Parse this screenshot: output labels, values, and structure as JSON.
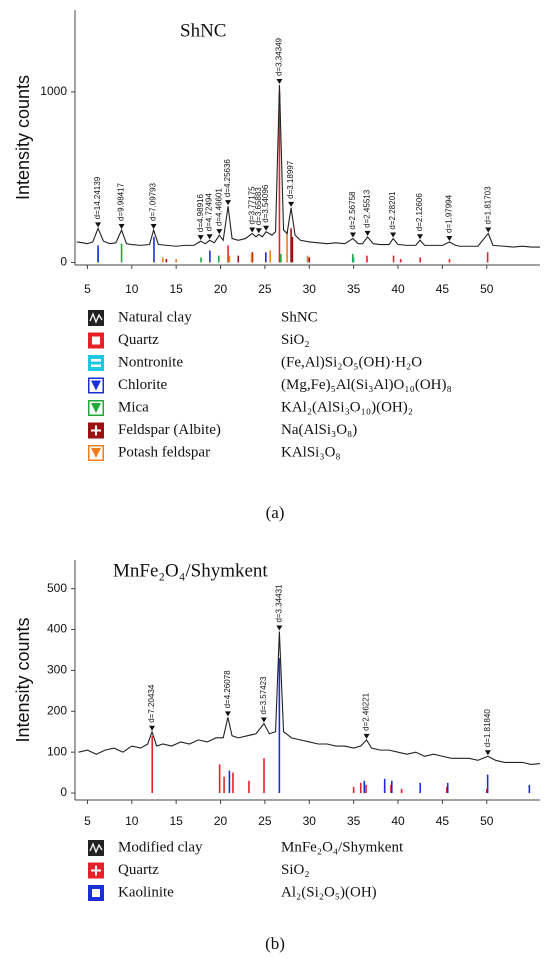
{
  "chart_data": [
    {
      "type": "line",
      "title": "ShNC",
      "ylabel": "Intensity counts",
      "panel_label": "(a)",
      "xlim": [
        3.6,
        56
      ],
      "ylim": [
        -15,
        1480
      ],
      "xticks": [
        5,
        10,
        15,
        20,
        25,
        30,
        35,
        40,
        45,
        50
      ],
      "yticks": [
        0,
        1000
      ],
      "series": [
        {
          "name": "Natural clay",
          "formula": "ShNC",
          "type": "line",
          "color": "#222222",
          "marker": "wave",
          "x": [
            3.8,
            4.5,
            5,
            5.6,
            6.2,
            6.8,
            7.5,
            8.2,
            8.85,
            9.4,
            10,
            11,
            12,
            12.46,
            13,
            14,
            15,
            16,
            17,
            17.76,
            18.3,
            18.77,
            19.3,
            19.86,
            20.3,
            20.85,
            21.3,
            22,
            22.8,
            23.57,
            24,
            24.31,
            24.7,
            25.13,
            25.8,
            26.2,
            26.64,
            27.1,
            27.5,
            27.95,
            28.4,
            29,
            30,
            31,
            32,
            33,
            34,
            34.92,
            35.5,
            36,
            36.57,
            37.2,
            38,
            39,
            39.45,
            40,
            41,
            42,
            42.48,
            43,
            44,
            45,
            45.79,
            46.5,
            47,
            48,
            49,
            50.17,
            50.7,
            52,
            53,
            54,
            55,
            56
          ],
          "values": [
            120,
            115,
            110,
            120,
            200,
            125,
            110,
            115,
            190,
            110,
            105,
            100,
            105,
            190,
            105,
            100,
            95,
            100,
            100,
            125,
            110,
            130,
            115,
            160,
            130,
            330,
            140,
            130,
            140,
            170,
            150,
            165,
            150,
            180,
            160,
            180,
            1040,
            190,
            170,
            320,
            160,
            130,
            120,
            115,
            110,
            115,
            110,
            140,
            110,
            110,
            150,
            110,
            105,
            105,
            140,
            105,
            100,
            100,
            130,
            100,
            100,
            100,
            120,
            100,
            95,
            95,
            95,
            170,
            100,
            95,
            90,
            95,
            90,
            90
          ]
        },
        {
          "name": "Quartz",
          "formula": "SiO₂",
          "type": "stem",
          "color": "#e8202a",
          "marker": "square",
          "x": [
            20.85,
            26.64,
            36.5,
            39.5,
            40.3,
            42.5,
            45.8,
            50.1
          ],
          "values": [
            100,
            1000,
            40,
            40,
            20,
            30,
            20,
            60
          ]
        },
        {
          "name": "Nontronite",
          "formula": "(Fe,Al)Si₂O₅(OH)·H₂O",
          "type": "stem",
          "color": "#1fc8e0",
          "marker": "equals",
          "x": [
            6.2,
            19.8,
            35
          ],
          "values": [
            70,
            40,
            30
          ]
        },
        {
          "name": "Chlorite",
          "formula": "(Mg,Fe)₅Al(Si₃Al)O₁₀(OH)₈",
          "type": "stem",
          "color": "#1a2fd6",
          "marker": "triangle",
          "x": [
            6.2,
            12.5,
            18.8,
            25.1,
            34.9
          ],
          "values": [
            100,
            150,
            70,
            60,
            20
          ]
        },
        {
          "name": "Mica",
          "formula": "KAl₂(AlSi₃O₁₀)(OH)₂",
          "type": "stem",
          "color": "#22a83a",
          "marker": "triangle",
          "x": [
            8.85,
            17.8,
            19.8,
            26.8,
            34.9
          ],
          "values": [
            110,
            30,
            40,
            50,
            50
          ]
        },
        {
          "name": "Feldspar (Albite)",
          "formula": "Na(AlSi₃O₈)",
          "type": "stem",
          "color": "#9c1010",
          "marker": "plus",
          "x": [
            13.9,
            22,
            23.6,
            27.95,
            28.1,
            30
          ],
          "values": [
            20,
            40,
            60,
            200,
            150,
            30
          ]
        },
        {
          "name": "Potash feldspar",
          "formula": "KAlSi₃O₈",
          "type": "stem",
          "color": "#f07d1a",
          "marker": "triangle",
          "x": [
            13.5,
            15,
            21,
            23.5,
            25.6,
            27.5,
            29.8
          ],
          "values": [
            30,
            20,
            40,
            50,
            70,
            180,
            40
          ]
        }
      ],
      "annotations": [
        {
          "text": "d=14.24139",
          "x": 6.2,
          "y": 200
        },
        {
          "text": "d=9.98417",
          "x": 8.85,
          "y": 190
        },
        {
          "text": "d=7.09793",
          "x": 12.46,
          "y": 190
        },
        {
          "text": "d=4.98916",
          "x": 17.76,
          "y": 125
        },
        {
          "text": "d=4.72494",
          "x": 18.77,
          "y": 130
        },
        {
          "text": "d=4.46601",
          "x": 19.86,
          "y": 160
        },
        {
          "text": "d=4.25636",
          "x": 20.85,
          "y": 330
        },
        {
          "text": "d=3.77175",
          "x": 23.57,
          "y": 170
        },
        {
          "text": "d=3.65883",
          "x": 24.31,
          "y": 165
        },
        {
          "text": "d=3.54096",
          "x": 25.13,
          "y": 180
        },
        {
          "text": "d=3.34349",
          "x": 26.64,
          "y": 1040
        },
        {
          "text": "d=3.18997",
          "x": 27.95,
          "y": 320
        },
        {
          "text": "d=2.56758",
          "x": 34.92,
          "y": 140
        },
        {
          "text": "d=2.45513",
          "x": 36.57,
          "y": 150
        },
        {
          "text": "d=2.28201",
          "x": 39.45,
          "y": 140
        },
        {
          "text": "d=2.12606",
          "x": 42.48,
          "y": 130
        },
        {
          "text": "d=1.97994",
          "x": 45.79,
          "y": 120
        },
        {
          "text": "d=1.81703",
          "x": 50.17,
          "y": 170
        }
      ]
    },
    {
      "type": "line",
      "title": "MnFe₂O₄/Shymkent",
      "ylabel": "Intensity counts",
      "panel_label": "(b)",
      "xlim": [
        3.6,
        56
      ],
      "ylim": [
        -17,
        570
      ],
      "xticks": [
        5,
        10,
        15,
        20,
        25,
        30,
        35,
        40,
        45,
        50
      ],
      "yticks": [
        0,
        100,
        200,
        300,
        400,
        500
      ],
      "series": [
        {
          "name": "Modified clay",
          "formula": "MnFe₂O₄/Shymkent",
          "type": "line",
          "color": "#222222",
          "marker": "wave",
          "x": [
            4,
            5,
            6,
            7,
            8,
            9,
            10,
            11,
            11.8,
            12.28,
            12.8,
            13.5,
            14.5,
            15.5,
            16.5,
            17.5,
            18.5,
            19.5,
            20.3,
            20.83,
            21.3,
            22,
            23,
            24,
            24.89,
            25.5,
            26.2,
            26.63,
            27.1,
            28,
            29,
            30,
            31,
            32,
            33,
            34,
            35,
            35.8,
            36.46,
            37,
            38,
            39,
            40,
            41,
            42,
            43,
            44,
            45,
            46,
            47,
            48,
            49,
            50.13,
            51,
            52,
            53,
            54,
            55,
            56
          ],
          "values": [
            100,
            105,
            95,
            105,
            110,
            100,
            115,
            110,
            120,
            150,
            115,
            120,
            115,
            125,
            120,
            130,
            125,
            135,
            135,
            185,
            140,
            135,
            140,
            145,
            170,
            145,
            150,
            395,
            150,
            135,
            130,
            125,
            120,
            120,
            115,
            115,
            110,
            115,
            130,
            110,
            105,
            105,
            100,
            95,
            100,
            90,
            95,
            90,
            85,
            85,
            85,
            80,
            90,
            80,
            75,
            75,
            75,
            70,
            72
          ]
        },
        {
          "name": "Quartz",
          "formula": "SiO₂",
          "type": "stem",
          "color": "#e8202a",
          "marker": "plus",
          "x": [
            12.3,
            19.9,
            20.4,
            21.4,
            23.2,
            24.9,
            35,
            35.8,
            36.4,
            38.5,
            39.2,
            40.4,
            45.5,
            50
          ],
          "values": [
            140,
            70,
            40,
            50,
            30,
            85,
            15,
            25,
            20,
            15,
            20,
            10,
            15,
            10
          ]
        },
        {
          "name": "Kaolinite",
          "formula": "Al₂(Si₂O₅)(OH)",
          "type": "stem",
          "color": "#1a2fd6",
          "marker": "square",
          "x": [
            21,
            26.63,
            36.2,
            38.5,
            39.3,
            42.5,
            45.6,
            50.1,
            54.8
          ],
          "values": [
            55,
            330,
            30,
            35,
            30,
            25,
            25,
            45,
            20
          ]
        }
      ],
      "annotations": [
        {
          "text": "d=7.20434",
          "x": 12.28,
          "y": 150
        },
        {
          "text": "d=4.26078",
          "x": 20.83,
          "y": 185
        },
        {
          "text": "d=3.57423",
          "x": 24.89,
          "y": 170
        },
        {
          "text": "d=3.34431",
          "x": 26.63,
          "y": 395
        },
        {
          "text": "d=2.46221",
          "x": 36.46,
          "y": 130
        },
        {
          "text": "d=1.81840",
          "x": 50.13,
          "y": 90
        }
      ]
    }
  ]
}
